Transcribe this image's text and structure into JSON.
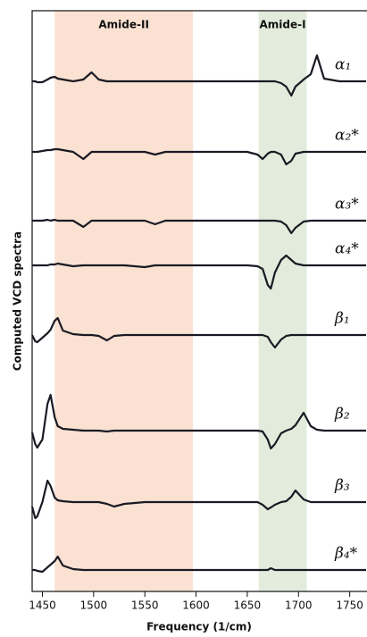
{
  "chart_data": {
    "type": "line",
    "x_label": "Frequency (1/cm)",
    "y_label": "Computed VCD spectra",
    "x": [
      1440,
      1443,
      1445,
      1450,
      1455,
      1458,
      1462,
      1465,
      1470,
      1480,
      1490,
      1498,
      1505,
      1513,
      1520,
      1530,
      1550,
      1560,
      1570,
      1600,
      1650,
      1660,
      1665,
      1670,
      1673,
      1677,
      1683,
      1688,
      1693,
      1697,
      1705,
      1712,
      1718,
      1725,
      1740,
      1766
    ],
    "xlim": [
      1440,
      1766
    ],
    "xticks": [
      1450,
      1500,
      1550,
      1600,
      1650,
      1700,
      1750
    ],
    "ylim": [
      0,
      650
    ],
    "bands": [
      {
        "label": "Amide-II",
        "range": [
          1462,
          1597
        ],
        "color": "#fae1d2"
      },
      {
        "label": "Amide-I",
        "range": [
          1661,
          1708
        ],
        "color": "#e3ecdc"
      }
    ],
    "series": [
      {
        "name": "α₁",
        "color": "#1a1a24",
        "values": [
          571,
          571,
          570,
          570,
          573,
          575,
          576,
          574,
          573,
          571,
          573,
          581,
          573,
          571,
          571,
          571,
          571,
          571,
          571,
          571,
          571,
          571,
          571,
          571,
          571,
          571,
          569,
          565,
          555,
          565,
          573,
          579,
          600,
          574,
          571,
          571
        ]
      },
      {
        "name": "α₂*",
        "color": "#1a1a24",
        "values": [
          492,
          492,
          492,
          493,
          494,
          494,
          495,
          495,
          494,
          492,
          484,
          492,
          492,
          492,
          492,
          492,
          492,
          489,
          492,
          492,
          492,
          489,
          484,
          490,
          492,
          492,
          489,
          478,
          482,
          490,
          492,
          492,
          492,
          492,
          492,
          492
        ]
      },
      {
        "name": "α₃*",
        "color": "#1a1a24",
        "values": [
          415,
          415,
          415,
          415,
          416,
          415,
          416,
          415,
          415,
          415,
          408,
          415,
          415,
          415,
          415,
          415,
          415,
          411,
          415,
          415,
          415,
          415,
          415,
          415,
          415,
          415,
          414,
          410,
          401,
          407,
          414,
          415,
          415,
          415,
          415,
          415
        ]
      },
      {
        "name": "α₄*",
        "color": "#1a1a24",
        "values": [
          365,
          365,
          365,
          365,
          365,
          366,
          366,
          367,
          366,
          364,
          365,
          365,
          365,
          365,
          365,
          365,
          363,
          365,
          365,
          365,
          365,
          364,
          361,
          343,
          339,
          357,
          371,
          376,
          371,
          367,
          365,
          365,
          365,
          365,
          365,
          365
        ]
      },
      {
        "name": "β₁",
        "color": "#1a1a24",
        "values": [
          287,
          280,
          279,
          284,
          289,
          293,
          303,
          306,
          292,
          288,
          287,
          287,
          286,
          281,
          286,
          287,
          287,
          287,
          287,
          287,
          287,
          287,
          287,
          285,
          279,
          273,
          282,
          286,
          287,
          287,
          287,
          287,
          287,
          287,
          287,
          287
        ]
      },
      {
        "name": "β₂",
        "color": "#1a1a24",
        "values": [
          178,
          165,
          161,
          170,
          210,
          220,
          195,
          185,
          182,
          181,
          180,
          180,
          180,
          179,
          180,
          180,
          180,
          180,
          180,
          180,
          180,
          180,
          179,
          170,
          160,
          165,
          177,
          180,
          182,
          186,
          200,
          185,
          181,
          180,
          180,
          180
        ]
      },
      {
        "name": "β₃",
        "color": "#1a1a24",
        "values": [
          95,
          82,
          84,
          100,
          124,
          118,
          105,
          102,
          101,
          100,
          100,
          100,
          100,
          98,
          95,
          98,
          100,
          100,
          100,
          100,
          100,
          100,
          97,
          92,
          94,
          97,
          100,
          101,
          106,
          113,
          103,
          100,
          100,
          100,
          100,
          100
        ]
      },
      {
        "name": "β₄*",
        "color": "#1a1a24",
        "values": [
          24,
          24,
          23,
          22,
          27,
          30,
          34,
          39,
          29,
          25,
          24,
          24,
          24,
          24,
          24,
          24,
          24,
          24,
          24,
          24,
          24,
          24,
          24,
          24,
          26,
          24,
          24,
          24,
          24,
          24,
          24,
          24,
          24,
          24,
          24,
          24
        ]
      }
    ]
  }
}
